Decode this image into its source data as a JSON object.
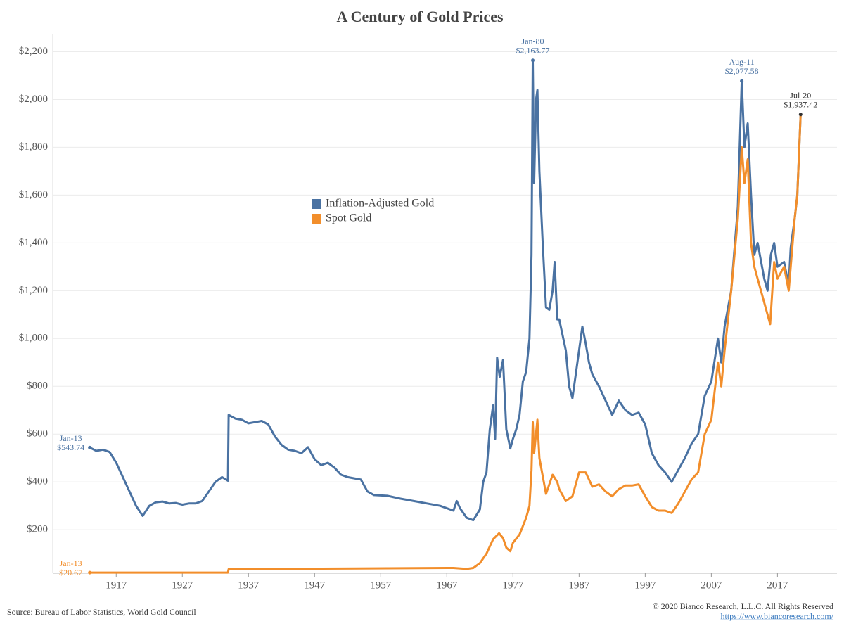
{
  "chart_data": {
    "type": "line",
    "title": "A Century of Gold Prices",
    "source": "Source: Bureau of Labor Statistics, World Gold Council",
    "copyright": "© 2020 Bianco Research, L.L.C. All Rights Reserved",
    "url": "https://www.biancoresearch.com/",
    "xlim": [
      1907.4,
      2026
    ],
    "xticks": [
      1917,
      1927,
      1937,
      1947,
      1957,
      1967,
      1977,
      1987,
      1997,
      2007,
      2017
    ],
    "ylim": [
      18,
      2275
    ],
    "yticks": [
      {
        "value": 200,
        "label": "$200"
      },
      {
        "value": 400,
        "label": "$400"
      },
      {
        "value": 600,
        "label": "$600"
      },
      {
        "value": 800,
        "label": "$800"
      },
      {
        "value": 1000,
        "label": "$1,000"
      },
      {
        "value": 1200,
        "label": "$1,200"
      },
      {
        "value": 1400,
        "label": "$1,400"
      },
      {
        "value": 1600,
        "label": "$1,600"
      },
      {
        "value": 1800,
        "label": "$1,800"
      },
      {
        "value": 2000,
        "label": "$2,000"
      },
      {
        "value": 2200,
        "label": "$2,200"
      }
    ],
    "grid": true,
    "legend_position": "center-left",
    "series": [
      {
        "name": "Inflation-Adjusted Gold",
        "color": "#4a72a2",
        "x": [
          1913,
          1914,
          1915,
          1916,
          1917,
          1918,
          1919,
          1920,
          1921,
          1922,
          1923,
          1924,
          1925,
          1926,
          1927,
          1928,
          1929,
          1930,
          1931,
          1932,
          1933,
          1933.9,
          1934,
          1935,
          1936,
          1937,
          1938,
          1939,
          1940,
          1941,
          1942,
          1943,
          1944,
          1945,
          1946,
          1947,
          1948,
          1949,
          1950,
          1951,
          1952,
          1953,
          1954,
          1955,
          1956,
          1958,
          1960,
          1962,
          1964,
          1966,
          1968,
          1968.5,
          1969,
          1970,
          1971,
          1972,
          1972.5,
          1973,
          1973.5,
          1974,
          1974.3,
          1974.6,
          1975,
          1975.5,
          1976,
          1976.6,
          1977,
          1977.5,
          1978,
          1978.5,
          1979,
          1979.5,
          1979.8,
          1980,
          1980.2,
          1980.5,
          1980.7,
          1981,
          1981.5,
          1982,
          1982.5,
          1983,
          1983.3,
          1983.7,
          1984,
          1985,
          1985.5,
          1986,
          1986.5,
          1987,
          1987.5,
          1988,
          1988.5,
          1989,
          1990,
          1991,
          1992,
          1993,
          1994,
          1995,
          1996,
          1997,
          1998,
          1999,
          2000,
          2001,
          2002,
          2003,
          2004,
          2005,
          2006,
          2007,
          2008,
          2008.5,
          2009,
          2010,
          2011,
          2011.6,
          2012,
          2012.5,
          2013,
          2013.5,
          2014,
          2015,
          2015.5,
          2016,
          2016.5,
          2017,
          2018,
          2018.7,
          2019,
          2019.6,
          2020,
          2020.5
        ],
        "values": [
          543.74,
          530,
          535,
          525,
          480,
          420,
          360,
          300,
          258,
          300,
          315,
          318,
          310,
          312,
          305,
          310,
          310,
          320,
          360,
          400,
          420,
          405,
          680,
          665,
          660,
          645,
          650,
          655,
          640,
          590,
          555,
          535,
          530,
          520,
          545,
          495,
          470,
          480,
          460,
          430,
          420,
          415,
          410,
          360,
          345,
          342,
          330,
          320,
          310,
          300,
          280,
          320,
          290,
          250,
          240,
          285,
          400,
          440,
          620,
          720,
          580,
          920,
          840,
          910,
          620,
          540,
          580,
          620,
          680,
          820,
          860,
          1000,
          1350,
          2163.77,
          1650,
          2000,
          2040,
          1700,
          1400,
          1130,
          1120,
          1200,
          1320,
          1080,
          1080,
          950,
          800,
          750,
          850,
          950,
          1050,
          980,
          900,
          850,
          800,
          740,
          680,
          740,
          700,
          680,
          690,
          640,
          520,
          470,
          440,
          400,
          450,
          500,
          560,
          600,
          760,
          820,
          1000,
          900,
          1050,
          1200,
          1550,
          2077.58,
          1800,
          1900,
          1600,
          1350,
          1400,
          1250,
          1200,
          1350,
          1400,
          1300,
          1320,
          1220,
          1380,
          1500,
          1600,
          1937.42
        ]
      },
      {
        "name": "Spot Gold",
        "color": "#f28e2b",
        "x": [
          1913,
          1933.9,
          1934,
          1968,
          1970,
          1971,
          1972,
          1973,
          1974,
          1974.9,
          1975.5,
          1976,
          1976.6,
          1977,
          1978,
          1979,
          1979.5,
          1979.8,
          1980,
          1980.2,
          1980.7,
          1981,
          1982,
          1983,
          1983.7,
          1984,
          1985,
          1986,
          1987,
          1988,
          1989,
          1990,
          1991,
          1992,
          1993,
          1994,
          1995,
          1996,
          1997,
          1998,
          1999,
          2000,
          2001,
          2002,
          2003,
          2004,
          2005,
          2006,
          2007,
          2008,
          2008.5,
          2009,
          2010,
          2011,
          2011.6,
          2012,
          2012.5,
          2013,
          2013.5,
          2014,
          2015,
          2015.9,
          2016.5,
          2017,
          2018,
          2018.7,
          2019,
          2019.6,
          2020,
          2020.5
        ],
        "values": [
          20.67,
          20.67,
          35,
          40,
          36,
          40,
          60,
          100,
          160,
          185,
          165,
          125,
          110,
          145,
          180,
          250,
          300,
          450,
          650,
          520,
          660,
          500,
          350,
          430,
          400,
          370,
          320,
          340,
          440,
          440,
          380,
          390,
          360,
          340,
          370,
          385,
          385,
          390,
          340,
          295,
          280,
          280,
          270,
          310,
          360,
          410,
          440,
          600,
          660,
          900,
          800,
          950,
          1200,
          1500,
          1800,
          1650,
          1750,
          1400,
          1300,
          1250,
          1150,
          1060,
          1320,
          1250,
          1300,
          1200,
          1300,
          1500,
          1600,
          1937.42
        ]
      }
    ],
    "annotations": [
      {
        "label": "Jan-80",
        "value_label": "$2,163.77",
        "x": 1980,
        "y": 2163.77,
        "color": "#4a72a2"
      },
      {
        "label": "Aug-11",
        "value_label": "$2,077.58",
        "x": 2011.6,
        "y": 2077.58,
        "color": "#4a72a2"
      },
      {
        "label": "Jul-20",
        "value_label": "$1,937.42",
        "x": 2020.5,
        "y": 1937.42,
        "color": "#333333"
      },
      {
        "label": "Jan-13",
        "value_label": "$543.74",
        "x": 1913,
        "y": 543.74,
        "color": "#4a72a2"
      },
      {
        "label": "Jan-13",
        "value_label": "$20.67",
        "x": 1913,
        "y": 20.67,
        "color": "#f28e2b"
      }
    ]
  }
}
